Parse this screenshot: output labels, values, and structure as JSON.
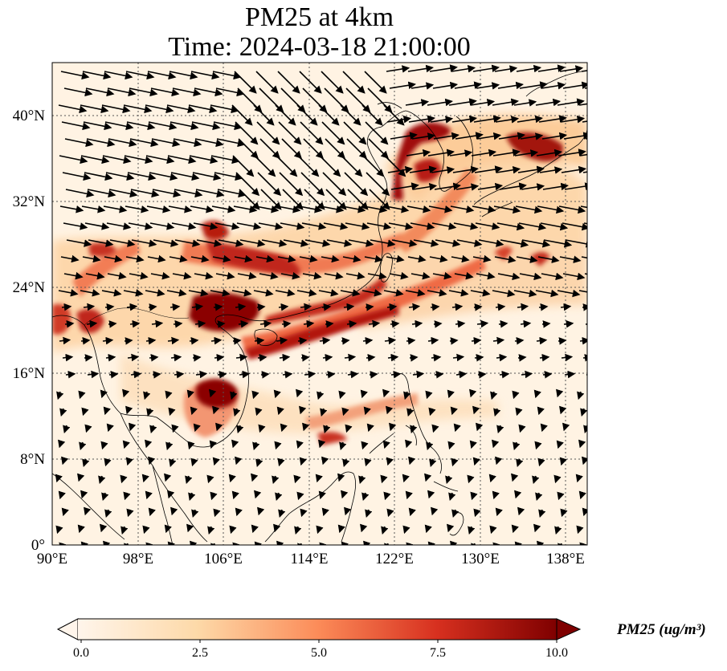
{
  "title": {
    "line1": "PM25 at 4km",
    "line2": "Time: 2024-03-18 21:00:00"
  },
  "map": {
    "lon_range": [
      90,
      140
    ],
    "lat_range": [
      0,
      45
    ],
    "lon_ticks": [
      "90°E",
      "98°E",
      "106°E",
      "114°E",
      "122°E",
      "130°E",
      "138°E"
    ],
    "lat_ticks": [
      "0°",
      "8°N",
      "16°N",
      "24°N",
      "32°N",
      "40°N"
    ]
  },
  "colorbar": {
    "title": "PM25 (ug/m³)",
    "min": 0,
    "max": 10,
    "ticks": [
      "0.0",
      "2.5",
      "5.0",
      "7.5",
      "10.0"
    ],
    "colors": [
      "#fff5eb",
      "#fdd9a8",
      "#fc8c59",
      "#d7301f",
      "#7f0000"
    ]
  },
  "chart_data": {
    "type": "heatmap",
    "title": "PM25 at 4km / Time: 2024-03-18 21:00:00",
    "variable": "PM25",
    "units": "ug/m3",
    "xlim": [
      90,
      140
    ],
    "ylim": [
      0,
      45
    ],
    "clim": [
      0,
      10
    ],
    "colormap": "OrRd",
    "overlay": "wind vectors",
    "high_concentration_regions": [
      {
        "lon": 106.5,
        "lat": 21,
        "approx_value": 10
      },
      {
        "lon": 104.5,
        "lat": 14,
        "approx_value": 10
      },
      {
        "lon": 113,
        "lat": 18.5,
        "approx_value": 9
      },
      {
        "lon": 121,
        "lat": 23,
        "approx_value": 8
      },
      {
        "lon": 125.5,
        "lat": 39,
        "approx_value": 9
      },
      {
        "lon": 124,
        "lat": 35,
        "approx_value": 8
      },
      {
        "lon": 134.5,
        "lat": 37,
        "approx_value": 8
      },
      {
        "lon": 105,
        "lat": 29.5,
        "approx_value": 8
      },
      {
        "lon": 111,
        "lat": 27.5,
        "approx_value": 7
      },
      {
        "lon": 116,
        "lat": 12,
        "approx_value": 6
      },
      {
        "lon": 96,
        "lat": 21,
        "approx_value": 7
      }
    ]
  }
}
